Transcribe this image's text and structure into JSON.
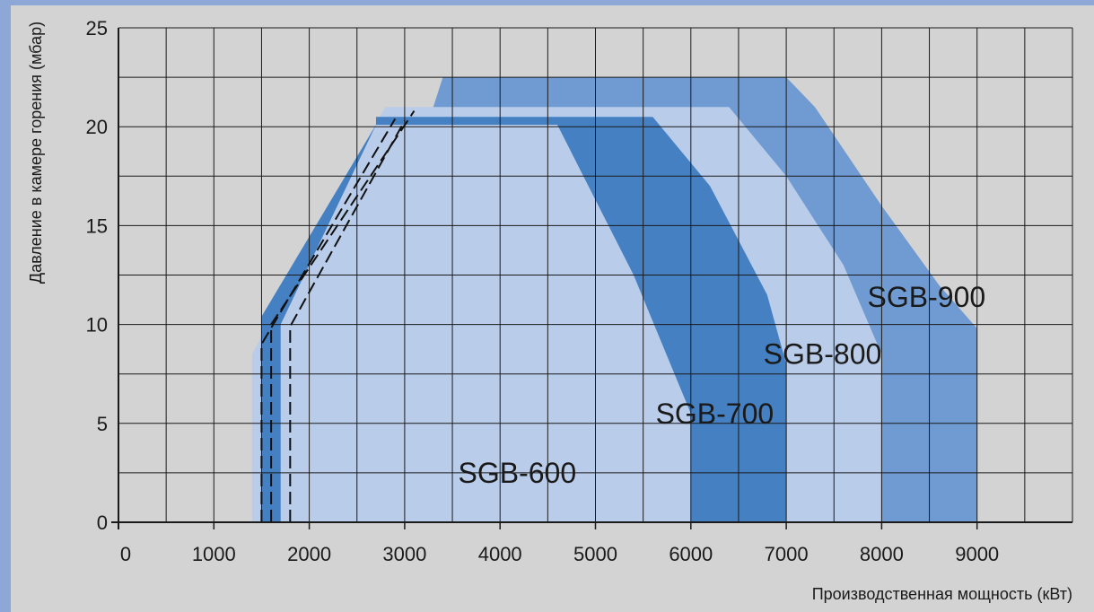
{
  "chart_data": {
    "type": "area",
    "xlabel": "Производственная мощность (кВт)",
    "ylabel": "Давление в камере горения (мбар)",
    "xlim": [
      0,
      10000
    ],
    "ylim": [
      0,
      25
    ],
    "x_ticks": [
      "0",
      "1000",
      "2000",
      "3000",
      "4000",
      "5000",
      "6000",
      "7000",
      "8000",
      "9000"
    ],
    "y_ticks": [
      "0",
      "5",
      "10",
      "15",
      "20",
      "25"
    ],
    "x_tick_values": [
      0,
      1000,
      2000,
      3000,
      4000,
      5000,
      6000,
      7000,
      8000,
      9000
    ],
    "y_tick_values": [
      0,
      5,
      10,
      15,
      20,
      25
    ],
    "grid": true,
    "series": [
      {
        "name": "SGB-900",
        "color": "#6f9bd2",
        "label_at": [
          8470,
          10.9
        ],
        "outline": [
          [
            1600,
            0
          ],
          [
            1600,
            10.0
          ],
          [
            3300,
            21.0
          ],
          [
            3400,
            22.5
          ],
          [
            7000,
            22.5
          ],
          [
            7300,
            21.0
          ],
          [
            8000,
            16.0
          ],
          [
            8600,
            12.0
          ],
          [
            9000,
            9.8
          ],
          [
            9000,
            0
          ]
        ]
      },
      {
        "name": "SGB-800",
        "color": "#b9ccea",
        "label_at": [
          7380,
          8.0
        ],
        "outline": [
          [
            1400,
            0
          ],
          [
            1400,
            8.5
          ],
          [
            2700,
            20.2
          ],
          [
            2800,
            21.0
          ],
          [
            6400,
            21.0
          ],
          [
            7000,
            17.5
          ],
          [
            7600,
            13.0
          ],
          [
            8000,
            8.5
          ],
          [
            8000,
            0
          ]
        ]
      },
      {
        "name": "SGB-700",
        "color": "#4480c2",
        "label_at": [
          6250,
          5.0
        ],
        "outline": [
          [
            1500,
            0
          ],
          [
            1500,
            10.4
          ],
          [
            2700,
            20.1
          ],
          [
            2700,
            20.5
          ],
          [
            5600,
            20.5
          ],
          [
            6200,
            17.0
          ],
          [
            6800,
            11.5
          ],
          [
            7000,
            8.0
          ],
          [
            7000,
            0
          ]
        ]
      },
      {
        "name": "SGB-600",
        "color": "#b9ccea",
        "label_at": [
          4180,
          2.0
        ],
        "outline": [
          [
            1700,
            0
          ],
          [
            1700,
            10.0
          ],
          [
            2700,
            20.1
          ],
          [
            4600,
            20.1
          ],
          [
            5400,
            12.5
          ],
          [
            6000,
            5.5
          ],
          [
            6000,
            0
          ]
        ]
      }
    ],
    "dashed_lines": [
      [
        [
          1500,
          0
        ],
        [
          1500,
          9.0
        ],
        [
          2900,
          20.4
        ]
      ],
      [
        [
          1600,
          0
        ],
        [
          1600,
          10.0
        ],
        [
          3100,
          20.8
        ]
      ],
      [
        [
          1800,
          0
        ],
        [
          1800,
          9.9
        ],
        [
          3000,
          20.3
        ]
      ]
    ]
  }
}
